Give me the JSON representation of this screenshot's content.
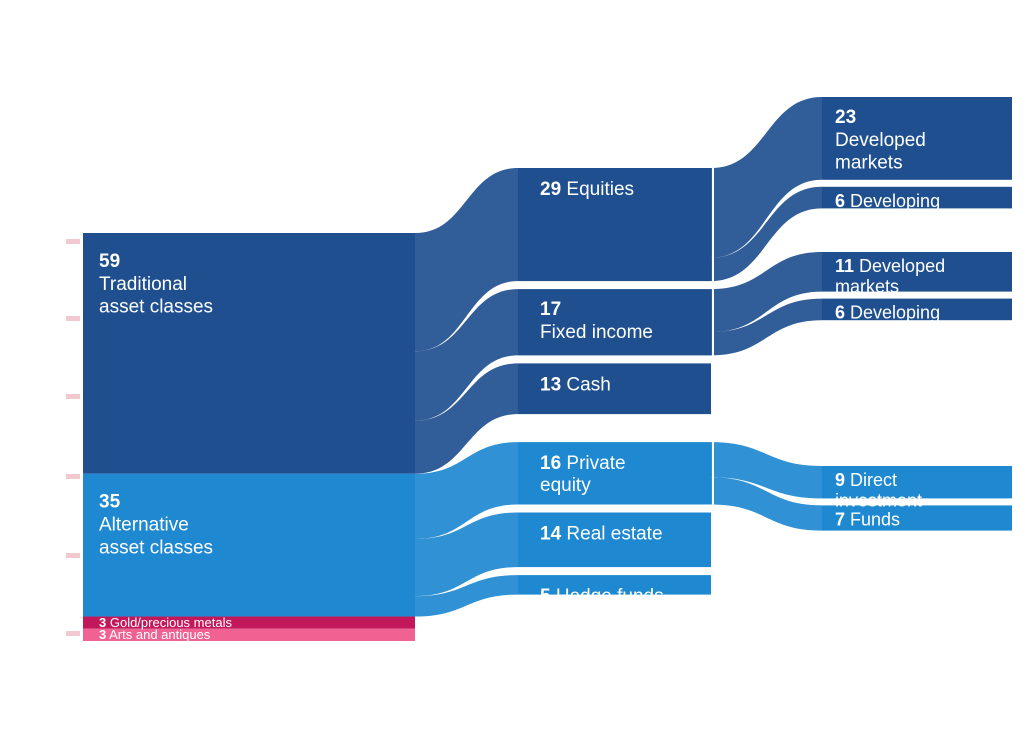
{
  "chart_data": {
    "type": "sankey",
    "unit": "%",
    "colors": {
      "traditional": "#1f4f8f",
      "alternative": "#1e88d0",
      "gold": "#c2185b",
      "arts": "#f06292",
      "label": "#ffffff",
      "axis_tick": "#f2c9cf"
    },
    "levels": [
      {
        "level": 1,
        "nodes": [
          {
            "id": "traditional",
            "value": 59,
            "label": "Traditional\nasset classes",
            "group": "traditional"
          },
          {
            "id": "alternative",
            "value": 35,
            "label": "Alternative\nasset classes",
            "group": "alternative"
          },
          {
            "id": "gold",
            "value": 3,
            "label": "Gold/precious metals",
            "group": "gold"
          },
          {
            "id": "arts",
            "value": 3,
            "label": "Arts and antiques",
            "group": "arts"
          }
        ]
      },
      {
        "level": 2,
        "nodes": [
          {
            "id": "equities",
            "value": 29,
            "label": "Equities",
            "parent": "traditional",
            "group": "traditional"
          },
          {
            "id": "fixed_income",
            "value": 17,
            "label": "Fixed income",
            "parent": "traditional",
            "group": "traditional"
          },
          {
            "id": "cash",
            "value": 13,
            "label": "Cash",
            "parent": "traditional",
            "group": "traditional"
          },
          {
            "id": "private_equity",
            "value": 16,
            "label": "Private\nequity",
            "parent": "alternative",
            "group": "alternative"
          },
          {
            "id": "real_estate",
            "value": 14,
            "label": "Real estate",
            "parent": "alternative",
            "group": "alternative"
          },
          {
            "id": "hedge_funds",
            "value": 5,
            "label": "Hedge funds",
            "parent": "alternative",
            "group": "alternative"
          }
        ]
      },
      {
        "level": 3,
        "nodes": [
          {
            "id": "eq_developed",
            "value": 23,
            "label": "Developed\nmarkets",
            "parent": "equities",
            "group": "traditional"
          },
          {
            "id": "eq_developing",
            "value": 6,
            "label": "Developing",
            "parent": "equities",
            "group": "traditional"
          },
          {
            "id": "fi_developed",
            "value": 11,
            "label": "Developed\nmarkets",
            "parent": "fixed_income",
            "group": "traditional"
          },
          {
            "id": "fi_developing",
            "value": 6,
            "label": "Developing",
            "parent": "fixed_income",
            "group": "traditional"
          },
          {
            "id": "pe_direct",
            "value": 9,
            "label": "Direct\ninvestment",
            "parent": "private_equity",
            "group": "alternative"
          },
          {
            "id": "pe_funds",
            "value": 7,
            "label": "Funds",
            "parent": "private_equity",
            "group": "alternative"
          }
        ]
      }
    ]
  }
}
